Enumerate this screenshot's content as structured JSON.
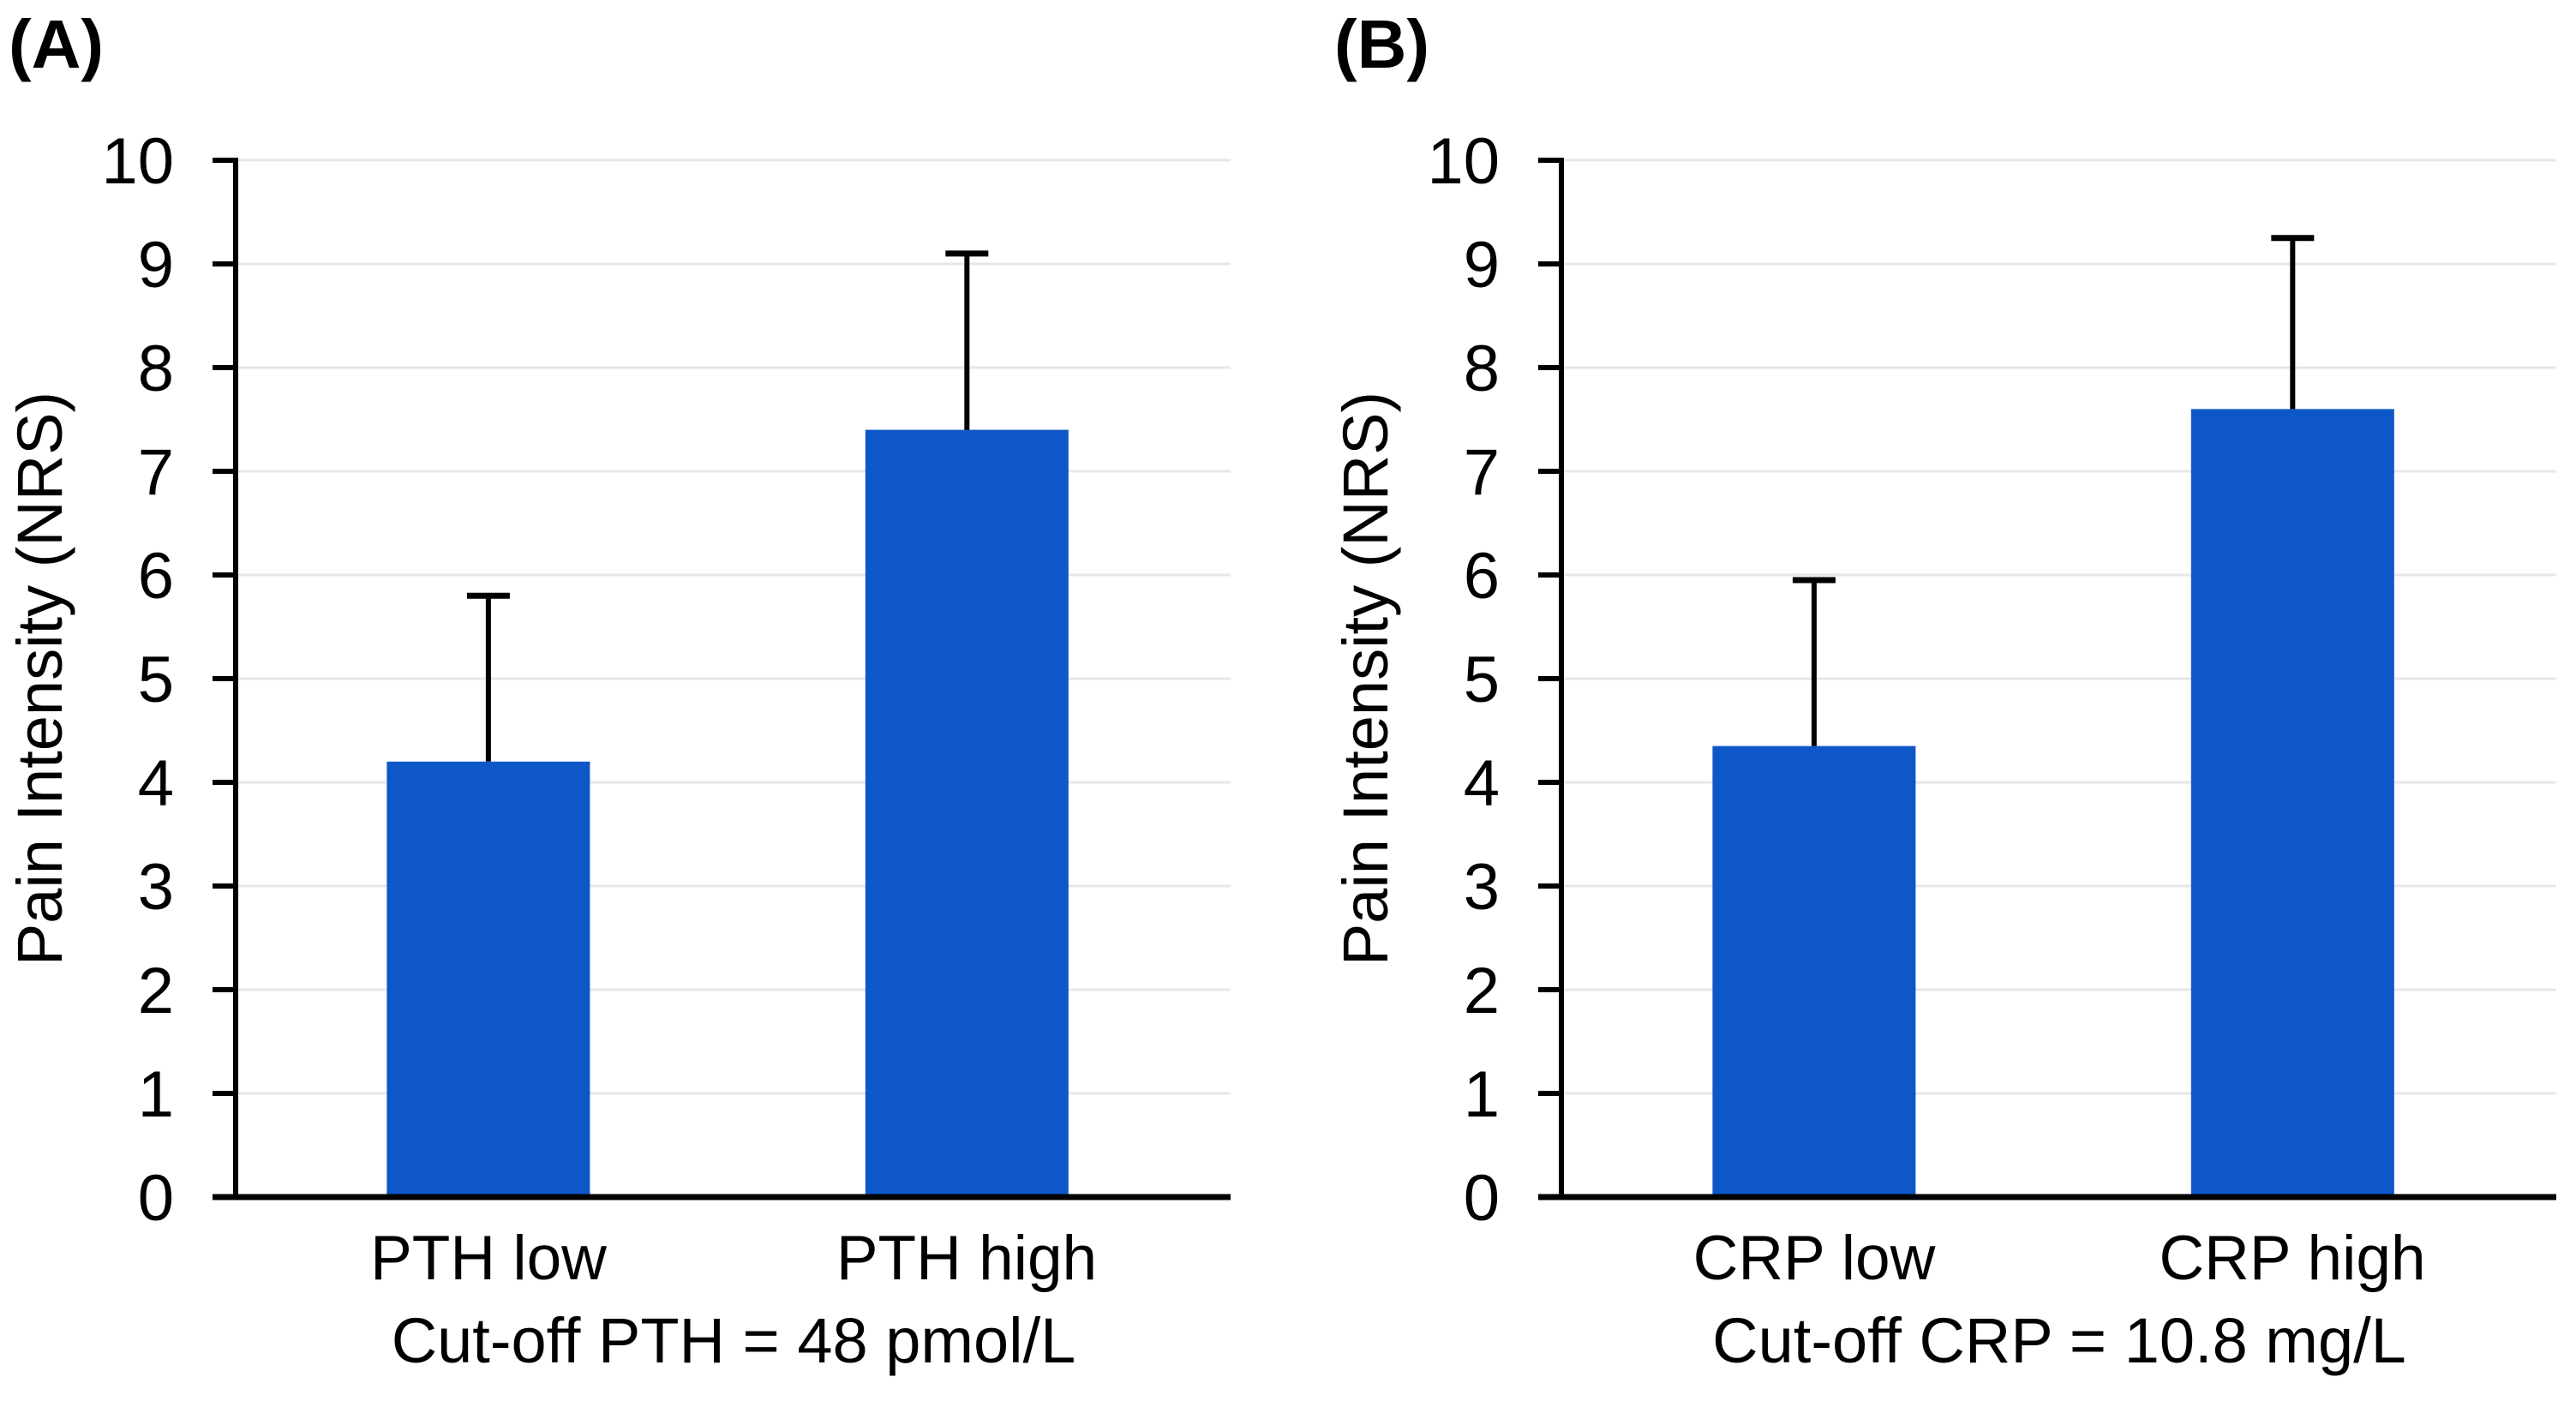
{
  "figure": {
    "background": "#ffffff"
  },
  "style": {
    "bar_color": "#0E57C9",
    "grid_color": "#e7e7e7",
    "axis_color": "#000000",
    "text_color": "#000000"
  },
  "chart_data": [
    {
      "type": "bar",
      "panel_label": "(A)",
      "categories": [
        "PTH low",
        "PTH high"
      ],
      "values": [
        4.2,
        7.4
      ],
      "error_upper_top": [
        5.8,
        9.1
      ],
      "xlabel": "Cut-off PTH = 48 pmol/L",
      "ylabel": "Pain Intensity (NRS)",
      "ylim": [
        0,
        10
      ],
      "ytick_step": 1,
      "grid": true,
      "legend": "none"
    },
    {
      "type": "bar",
      "panel_label": "(B)",
      "categories": [
        "CRP low",
        "CRP high"
      ],
      "values": [
        4.35,
        7.6
      ],
      "error_upper_top": [
        5.95,
        9.25
      ],
      "xlabel": "Cut-off CRP = 10.8 mg/L",
      "ylabel": "Pain Intensity (NRS)",
      "ylim": [
        0,
        10
      ],
      "ytick_step": 1,
      "grid": true,
      "legend": "none"
    }
  ]
}
